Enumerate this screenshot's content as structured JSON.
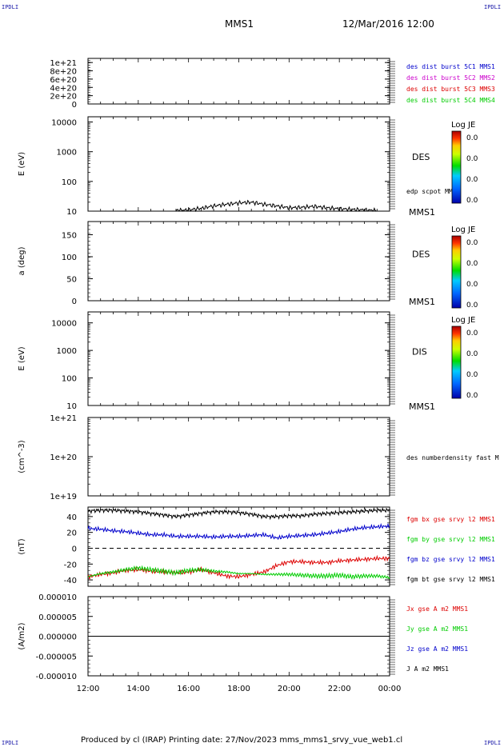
{
  "corners": {
    "top_left": "IPDLI",
    "top_right": "IPDLI",
    "bottom_left": "IPDLI",
    "bottom_right": "IPDLI"
  },
  "header": {
    "spacecraft": "MMS1",
    "datetime": "12/Mar/2016 12:00"
  },
  "footer": {
    "text": "Produced by cl (IRAP)   Printing date: 27/Nov/2023   mms_mms1_srvy_vue_web1.cl"
  },
  "colors": {
    "black": "#000000",
    "blue": "#0000cc",
    "magenta": "#cc00cc",
    "red": "#dd0000",
    "green": "#00cc00"
  },
  "chart_data": [
    {
      "type": "line",
      "ylabel": "",
      "yticks": [
        "1e+21",
        "8e+20",
        "6e+20",
        "4e+20",
        "2e+20",
        "0"
      ],
      "ylim": [
        0,
        1.1e+21
      ],
      "dashed_zero": true,
      "legend": [
        {
          "name": "des dist burst 5C1 MMS1",
          "color": "#0000cc"
        },
        {
          "name": "des dist burst 5C2 MMS2",
          "color": "#cc00cc"
        },
        {
          "name": "des dist burst 5C3 MMS3",
          "color": "#dd0000"
        },
        {
          "name": "des dist burst 5C4 MMS4",
          "color": "#00cc00"
        }
      ]
    },
    {
      "type": "heatmap",
      "ylabel": "E (eV)",
      "yticks": [
        "10000",
        "1000",
        "100",
        "10"
      ],
      "scale": "log",
      "ylim": [
        10,
        15000
      ],
      "label": "DES",
      "spacecraft_label": "MMS1",
      "overlay_label": "edp scpot MMS1",
      "colorbar": {
        "title": "Log JE",
        "ticks": [
          "0.0",
          "0.0",
          "0.0",
          "0.0"
        ]
      },
      "overlay_series": {
        "name": "edp scpot MMS1",
        "x_hours": [
          15.5,
          16.0,
          16.5,
          17.0,
          17.5,
          18.0,
          18.5,
          19.0,
          19.5,
          20.0,
          20.5,
          21.0,
          21.5,
          22.0,
          22.5,
          23.0,
          23.5
        ],
        "values": [
          10.5,
          11.0,
          12.5,
          15.0,
          17.0,
          19.0,
          20.0,
          17.0,
          15.0,
          13.0,
          13.5,
          14.5,
          13.0,
          12.0,
          11.5,
          11.0,
          10.5
        ]
      }
    },
    {
      "type": "heatmap",
      "ylabel": "a (deg)",
      "yticks": [
        "150",
        "100",
        "50",
        "0"
      ],
      "ylim": [
        0,
        180
      ],
      "label": "DES",
      "spacecraft_label": "MMS1",
      "colorbar": {
        "title": "Log JE",
        "ticks": [
          "0.0",
          "0.0",
          "0.0",
          "0.0"
        ]
      }
    },
    {
      "type": "heatmap",
      "ylabel": "E (eV)",
      "yticks": [
        "10000",
        "1000",
        "100",
        "10"
      ],
      "scale": "log",
      "ylim": [
        10,
        25000
      ],
      "label": "DIS",
      "spacecraft_label": "MMS1",
      "colorbar": {
        "title": "Log JE",
        "ticks": [
          "0.0",
          "0.0",
          "0.0",
          "0.0"
        ]
      }
    },
    {
      "type": "line",
      "ylabel": "(cm^-3)",
      "yticks": [
        "1e+21",
        "1e+20",
        "1e+19"
      ],
      "scale": "log",
      "ylim": [
        1e+19,
        1e+21
      ],
      "legend": [
        {
          "name": "des numberdensity fast M",
          "color": "#000000"
        }
      ]
    },
    {
      "type": "line",
      "ylabel": "(nT)",
      "yticks": [
        "40",
        "20",
        "0",
        "-20",
        "-40"
      ],
      "ylim": [
        -48,
        52
      ],
      "dashed_zero": true,
      "x_hours": [
        12,
        12.5,
        13,
        13.5,
        14,
        14.5,
        15,
        15.5,
        16,
        16.5,
        17,
        17.5,
        18,
        18.5,
        19,
        19.5,
        20,
        20.5,
        21,
        21.5,
        22,
        22.5,
        23,
        23.5,
        24
      ],
      "series": [
        {
          "name": "fgm bx gse srvy l2 MMS1",
          "color": "#dd0000",
          "values": [
            -36,
            -33,
            -31,
            -28,
            -27,
            -29,
            -30,
            -31,
            -30,
            -27,
            -31,
            -35,
            -36,
            -33,
            -30,
            -22,
            -17,
            -17,
            -18,
            -18,
            -16,
            -15,
            -14,
            -13,
            -13
          ]
        },
        {
          "name": "fgm by gse srvy l2 MMS1",
          "color": "#00cc00",
          "values": [
            -36,
            -32,
            -30,
            -27,
            -25,
            -27,
            -29,
            -31,
            -28,
            -27,
            -29,
            -30,
            -32,
            -32,
            -33,
            -33,
            -33,
            -34,
            -35,
            -35,
            -34,
            -36,
            -35,
            -35,
            -37
          ]
        },
        {
          "name": "fgm bz gse srvy l2 MMS1",
          "color": "#0000cc",
          "values": [
            25,
            24,
            22,
            21,
            19,
            17,
            17,
            15,
            15,
            15,
            14,
            15,
            15,
            16,
            17,
            13,
            15,
            16,
            17,
            19,
            21,
            24,
            26,
            27,
            28
          ]
        },
        {
          "name": "fgm bt gse srvy l2 MMS1",
          "color": "#000000",
          "values": [
            47,
            48,
            48,
            47,
            46,
            44,
            42,
            40,
            42,
            44,
            46,
            46,
            45,
            43,
            40,
            40,
            41,
            41,
            43,
            44,
            45,
            46,
            47,
            48,
            48
          ]
        }
      ]
    },
    {
      "type": "line",
      "ylabel": "(A/m2)",
      "yticks": [
        "0.000010",
        "0.000005",
        "0.000000",
        "-0.000005",
        "-0.000010"
      ],
      "ylim": [
        -1e-05,
        1e-05
      ],
      "x_hours": [
        12,
        24
      ],
      "series": [
        {
          "name": "Jx gse A m2 MMS1",
          "color": "#dd0000",
          "values": [
            0,
            0
          ]
        },
        {
          "name": "Jy gse A m2 MMS1",
          "color": "#00cc00",
          "values": [
            0,
            0
          ]
        },
        {
          "name": "Jz gse A m2 MMS1",
          "color": "#0000cc",
          "values": [
            0,
            0
          ]
        },
        {
          "name": "J A m2 MMS1",
          "color": "#000000",
          "values": [
            0,
            0
          ]
        }
      ]
    }
  ],
  "xaxis": {
    "ticks": [
      "12:00",
      "14:00",
      "16:00",
      "18:00",
      "20:00",
      "22:00",
      "00:00"
    ],
    "range_hours": [
      12,
      24
    ]
  }
}
